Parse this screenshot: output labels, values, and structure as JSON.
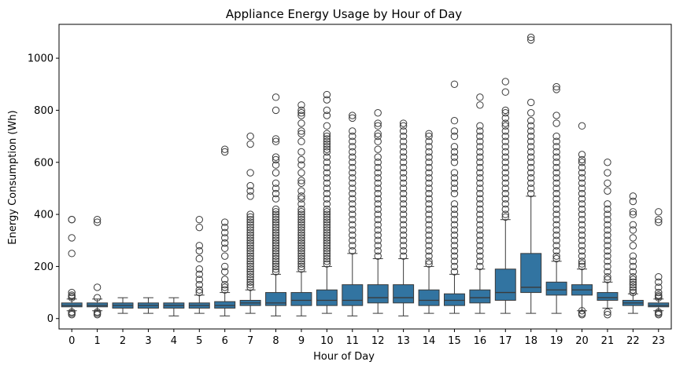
{
  "chart_data": {
    "type": "boxplot",
    "title": "Appliance Energy Usage by Hour of Day",
    "xlabel": "Hour of Day",
    "ylabel": "Energy Consumption (Wh)",
    "ylim": [
      -40,
      1130
    ],
    "yticks": [
      0,
      200,
      400,
      600,
      800,
      1000
    ],
    "box_color": "#3274a1",
    "edge_color": "#3a3a3a",
    "categories": [
      "0",
      "1",
      "2",
      "3",
      "4",
      "5",
      "6",
      "7",
      "8",
      "9",
      "10",
      "11",
      "12",
      "13",
      "14",
      "15",
      "16",
      "17",
      "18",
      "19",
      "20",
      "21",
      "22",
      "23"
    ],
    "boxes": [
      {
        "q1": 45,
        "median": 50,
        "q3": 60,
        "wlo": 30,
        "whi": 75,
        "outliers": [
          380,
          380,
          310,
          250,
          100,
          90,
          85,
          80,
          25,
          20,
          15
        ]
      },
      {
        "q1": 45,
        "median": 50,
        "q3": 60,
        "wlo": 30,
        "whi": 75,
        "outliers": [
          380,
          370,
          120,
          80,
          25,
          20,
          15
        ]
      },
      {
        "q1": 40,
        "median": 50,
        "q3": 60,
        "wlo": 20,
        "whi": 80,
        "outliers": []
      },
      {
        "q1": 40,
        "median": 50,
        "q3": 60,
        "wlo": 20,
        "whi": 80,
        "outliers": []
      },
      {
        "q1": 40,
        "median": 50,
        "q3": 60,
        "wlo": 10,
        "whi": 80,
        "outliers": []
      },
      {
        "q1": 40,
        "median": 50,
        "q3": 60,
        "wlo": 20,
        "whi": 90,
        "outliers": [
          380,
          350,
          280,
          260,
          230,
          190,
          170,
          150,
          130,
          110,
          100
        ]
      },
      {
        "q1": 40,
        "median": 50,
        "q3": 65,
        "wlo": 10,
        "whi": 100,
        "outliers": [
          650,
          640,
          370,
          350,
          330,
          310,
          290,
          270,
          240,
          200,
          180,
          150,
          130,
          120,
          110
        ]
      },
      {
        "q1": 50,
        "median": 60,
        "q3": 70,
        "wlo": 20,
        "whi": 110,
        "outliers": [
          700,
          670,
          560,
          510,
          490,
          470,
          400,
          390,
          380,
          370,
          360,
          350,
          340,
          330,
          320,
          310,
          300,
          290,
          280,
          270,
          260,
          250,
          240,
          230,
          220,
          210,
          200,
          190,
          180,
          170,
          160,
          150,
          140,
          130,
          120
        ]
      },
      {
        "q1": 50,
        "median": 60,
        "q3": 100,
        "wlo": 10,
        "whi": 170,
        "outliers": [
          850,
          800,
          690,
          680,
          620,
          610,
          590,
          560,
          520,
          500,
          480,
          460,
          420,
          410,
          400,
          390,
          380,
          370,
          360,
          350,
          340,
          330,
          320,
          310,
          300,
          290,
          280,
          270,
          260,
          250,
          240,
          230,
          220,
          210,
          200,
          190,
          180
        ]
      },
      {
        "q1": 50,
        "median": 70,
        "q3": 100,
        "wlo": 10,
        "whi": 180,
        "outliers": [
          820,
          800,
          790,
          780,
          750,
          720,
          710,
          680,
          640,
          610,
          590,
          560,
          530,
          520,
          490,
          470,
          460,
          440,
          420,
          410,
          400,
          390,
          380,
          370,
          360,
          350,
          340,
          330,
          320,
          310,
          300,
          290,
          280,
          270,
          260,
          250,
          240,
          230,
          220,
          210,
          200,
          190
        ]
      },
      {
        "q1": 50,
        "median": 70,
        "q3": 110,
        "wlo": 20,
        "whi": 200,
        "outliers": [
          860,
          840,
          800,
          780,
          740,
          710,
          700,
          690,
          680,
          670,
          660,
          650,
          640,
          620,
          600,
          580,
          560,
          540,
          520,
          500,
          480,
          460,
          440,
          420,
          410,
          400,
          390,
          380,
          370,
          360,
          350,
          340,
          330,
          320,
          310,
          300,
          290,
          280,
          270,
          260,
          250,
          240,
          230,
          220,
          210
        ]
      },
      {
        "q1": 50,
        "median": 70,
        "q3": 130,
        "wlo": 10,
        "whi": 250,
        "outliers": [
          780,
          770,
          720,
          700,
          680,
          660,
          640,
          620,
          600,
          580,
          560,
          540,
          520,
          500,
          480,
          460,
          440,
          420,
          400,
          380,
          360,
          340,
          320,
          300,
          280,
          260
        ]
      },
      {
        "q1": 60,
        "median": 80,
        "q3": 130,
        "wlo": 20,
        "whi": 230,
        "outliers": [
          790,
          750,
          740,
          710,
          700,
          680,
          650,
          620,
          600,
          580,
          560,
          540,
          520,
          500,
          480,
          460,
          440,
          420,
          400,
          380,
          360,
          340,
          320,
          300,
          280,
          260,
          240
        ]
      },
      {
        "q1": 60,
        "median": 80,
        "q3": 130,
        "wlo": 10,
        "whi": 230,
        "outliers": [
          750,
          740,
          720,
          700,
          680,
          660,
          640,
          620,
          600,
          580,
          560,
          540,
          520,
          500,
          480,
          460,
          440,
          420,
          400,
          380,
          360,
          340,
          320,
          300,
          280,
          260,
          240
        ]
      },
      {
        "q1": 50,
        "median": 70,
        "q3": 110,
        "wlo": 20,
        "whi": 200,
        "outliers": [
          710,
          700,
          680,
          660,
          640,
          620,
          600,
          580,
          560,
          540,
          520,
          500,
          480,
          460,
          440,
          420,
          400,
          380,
          360,
          340,
          320,
          300,
          280,
          260,
          240,
          220,
          210
        ]
      },
      {
        "q1": 50,
        "median": 70,
        "q3": 95,
        "wlo": 20,
        "whi": 170,
        "outliers": [
          900,
          760,
          720,
          700,
          660,
          640,
          620,
          600,
          560,
          540,
          520,
          500,
          480,
          440,
          420,
          400,
          380,
          360,
          340,
          320,
          300,
          280,
          260,
          240,
          220,
          200,
          180
        ]
      },
      {
        "q1": 60,
        "median": 80,
        "q3": 110,
        "wlo": 20,
        "whi": 190,
        "outliers": [
          850,
          820,
          740,
          720,
          700,
          680,
          660,
          640,
          620,
          600,
          580,
          560,
          540,
          520,
          500,
          480,
          460,
          440,
          420,
          400,
          380,
          360,
          340,
          320,
          300,
          280,
          260,
          240,
          220,
          200
        ]
      },
      {
        "q1": 70,
        "median": 100,
        "q3": 190,
        "wlo": 20,
        "whi": 380,
        "outliers": [
          910,
          870,
          800,
          790,
          770,
          750,
          740,
          720,
          700,
          680,
          660,
          640,
          620,
          600,
          580,
          560,
          540,
          520,
          500,
          480,
          460,
          440,
          420,
          400,
          390
        ]
      },
      {
        "q1": 100,
        "median": 120,
        "q3": 250,
        "wlo": 20,
        "whi": 470,
        "outliers": [
          1080,
          1070,
          830,
          790,
          760,
          740,
          720,
          700,
          680,
          660,
          640,
          620,
          600,
          580,
          560,
          540,
          520,
          500,
          480
        ]
      },
      {
        "q1": 90,
        "median": 110,
        "q3": 140,
        "wlo": 20,
        "whi": 220,
        "outliers": [
          890,
          880,
          780,
          750,
          700,
          680,
          660,
          640,
          620,
          600,
          580,
          560,
          540,
          520,
          500,
          480,
          460,
          440,
          420,
          400,
          380,
          360,
          340,
          320,
          300,
          280,
          260,
          240,
          230
        ]
      },
      {
        "q1": 90,
        "median": 110,
        "q3": 130,
        "wlo": 30,
        "whi": 190,
        "outliers": [
          740,
          630,
          610,
          600,
          580,
          560,
          540,
          520,
          500,
          480,
          460,
          440,
          420,
          400,
          380,
          360,
          340,
          320,
          300,
          280,
          260,
          240,
          220,
          210,
          200,
          30,
          20,
          15
        ]
      },
      {
        "q1": 70,
        "median": 80,
        "q3": 100,
        "wlo": 40,
        "whi": 140,
        "outliers": [
          600,
          560,
          520,
          490,
          440,
          420,
          400,
          380,
          360,
          340,
          320,
          300,
          280,
          260,
          240,
          220,
          200,
          180,
          160,
          150,
          25,
          15
        ]
      },
      {
        "q1": 50,
        "median": 60,
        "q3": 70,
        "wlo": 20,
        "whi": 95,
        "outliers": [
          470,
          450,
          410,
          400,
          360,
          340,
          310,
          280,
          240,
          220,
          200,
          180,
          160,
          150,
          140,
          130,
          120,
          110,
          100
        ]
      },
      {
        "q1": 45,
        "median": 50,
        "q3": 60,
        "wlo": 30,
        "whi": 75,
        "outliers": [
          410,
          380,
          370,
          160,
          140,
          120,
          100,
          90,
          85,
          80,
          25,
          20,
          15
        ]
      }
    ]
  }
}
